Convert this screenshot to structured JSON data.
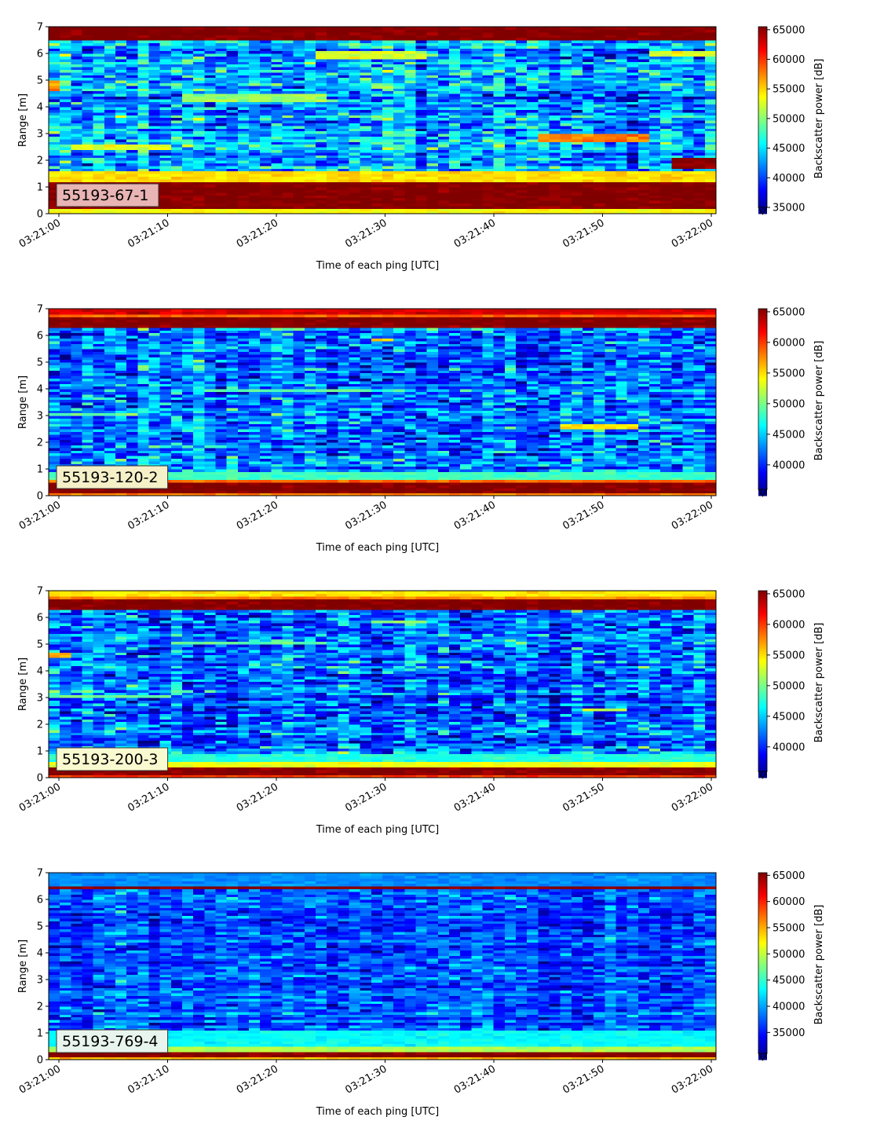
{
  "chart_data": [
    {
      "type": "heatmap",
      "label": "55193-67-1",
      "label_bg": "#e8b4b4",
      "xlabel": "Time of each ping [UTC]",
      "ylabel": "Range [m]",
      "colorbar_label": "Backscatter power [dB]",
      "colormap": "jet",
      "x_ticks": [
        "03:21:00",
        "03:21:10",
        "03:21:20",
        "03:21:30",
        "03:21:40",
        "03:21:50",
        "03:22:00"
      ],
      "y_ticks": [
        "0",
        "1",
        "2",
        "3",
        "4",
        "5",
        "6",
        "7"
      ],
      "ylim": [
        0,
        7
      ],
      "clim": [
        35000,
        65500
      ],
      "colorbar_ticks": [
        "65000",
        "60000",
        "55000",
        "50000",
        "45000",
        "40000",
        "35000"
      ],
      "colorbar_tick_values": [
        65000,
        60000,
        55000,
        50000,
        45000,
        40000,
        35000
      ],
      "background_level": 44000,
      "noise_level": 7000,
      "bands": [
        {
          "r0": 0.0,
          "r1": 0.22,
          "level": 54000
        },
        {
          "r0": 0.22,
          "r1": 1.2,
          "level": 65500
        },
        {
          "r0": 1.2,
          "r1": 1.55,
          "level": 55000
        },
        {
          "r0": 6.55,
          "r1": 7.0,
          "level": 65500
        },
        {
          "r0": 6.45,
          "r1": 6.55,
          "level": 57000
        }
      ],
      "features": [
        {
          "t0": 0,
          "t1": 0.02,
          "r0": 4.6,
          "r1": 5.0,
          "level": 57000
        },
        {
          "t0": 0.04,
          "t1": 0.18,
          "r0": 2.35,
          "r1": 2.6,
          "level": 53000
        },
        {
          "t0": 0.2,
          "t1": 0.42,
          "r0": 4.2,
          "r1": 4.5,
          "level": 51000
        },
        {
          "t0": 0.4,
          "t1": 0.56,
          "r0": 5.85,
          "r1": 6.1,
          "level": 53000
        },
        {
          "t0": 0.74,
          "t1": 0.9,
          "r0": 2.7,
          "r1": 3.05,
          "level": 58000
        },
        {
          "t0": 0.93,
          "t1": 1.0,
          "r0": 1.7,
          "r1": 2.1,
          "level": 65500
        },
        {
          "t0": 0.9,
          "t1": 1.0,
          "r0": 5.9,
          "r1": 6.1,
          "level": 53000
        }
      ]
    },
    {
      "type": "heatmap",
      "label": "55193-120-2",
      "label_bg": "#f5f0c8",
      "xlabel": "Time of each ping [UTC]",
      "ylabel": "Range [m]",
      "colorbar_label": "Backscatter power [dB]",
      "colormap": "jet",
      "x_ticks": [
        "03:21:00",
        "03:21:10",
        "03:21:20",
        "03:21:30",
        "03:21:40",
        "03:21:50",
        "03:22:00"
      ],
      "y_ticks": [
        "0",
        "1",
        "2",
        "3",
        "4",
        "5",
        "6",
        "7"
      ],
      "ylim": [
        0,
        7
      ],
      "clim": [
        36000,
        65500
      ],
      "colorbar_ticks": [
        "65000",
        "60000",
        "55000",
        "50000",
        "45000",
        "40000"
      ],
      "colorbar_tick_values": [
        65000,
        60000,
        55000,
        50000,
        45000,
        40000
      ],
      "background_level": 43000,
      "noise_level": 6500,
      "bands": [
        {
          "r0": 0.0,
          "r1": 0.1,
          "level": 58000
        },
        {
          "r0": 0.1,
          "r1": 0.45,
          "level": 65500
        },
        {
          "r0": 0.45,
          "r1": 0.65,
          "level": 59000
        },
        {
          "r0": 0.65,
          "r1": 0.9,
          "level": 49000
        },
        {
          "r0": 6.3,
          "r1": 6.65,
          "level": 65500
        },
        {
          "r0": 6.65,
          "r1": 6.85,
          "level": 59000
        },
        {
          "r0": 6.85,
          "r1": 7.0,
          "level": 63000
        }
      ],
      "features": [
        {
          "t0": 0.0,
          "t1": 0.14,
          "r0": 3.0,
          "r1": 3.15,
          "level": 50000
        },
        {
          "t0": 0.24,
          "t1": 0.48,
          "r0": 3.9,
          "r1": 4.05,
          "level": 50000
        },
        {
          "t0": 0.48,
          "t1": 0.52,
          "r0": 5.8,
          "r1": 5.95,
          "level": 56000
        },
        {
          "t0": 0.76,
          "t1": 0.88,
          "r0": 2.55,
          "r1": 2.7,
          "level": 55000
        }
      ]
    },
    {
      "type": "heatmap",
      "label": "55193-200-3",
      "label_bg": "#fafad0",
      "xlabel": "Time of each ping [UTC]",
      "ylabel": "Range [m]",
      "colorbar_label": "Backscatter power [dB]",
      "colormap": "jet",
      "x_ticks": [
        "03:21:00",
        "03:21:10",
        "03:21:20",
        "03:21:30",
        "03:21:40",
        "03:21:50",
        "03:22:00"
      ],
      "y_ticks": [
        "0",
        "1",
        "2",
        "3",
        "4",
        "5",
        "6",
        "7"
      ],
      "ylim": [
        0,
        7
      ],
      "clim": [
        36000,
        65500
      ],
      "colorbar_ticks": [
        "65000",
        "60000",
        "55000",
        "50000",
        "45000",
        "40000"
      ],
      "colorbar_tick_values": [
        65000,
        60000,
        55000,
        50000,
        45000,
        40000
      ],
      "background_level": 43000,
      "noise_level": 6500,
      "bands": [
        {
          "r0": 0.0,
          "r1": 0.12,
          "level": 60000
        },
        {
          "r0": 0.12,
          "r1": 0.4,
          "level": 65500
        },
        {
          "r0": 0.4,
          "r1": 0.65,
          "level": 54000
        },
        {
          "r0": 0.65,
          "r1": 0.95,
          "level": 48000
        },
        {
          "r0": 6.35,
          "r1": 6.65,
          "level": 65500
        },
        {
          "r0": 6.65,
          "r1": 6.8,
          "level": 58000
        },
        {
          "r0": 6.8,
          "r1": 7.0,
          "level": 55000
        }
      ],
      "features": [
        {
          "t0": 0.0,
          "t1": 0.03,
          "r0": 4.5,
          "r1": 4.65,
          "level": 57000
        },
        {
          "t0": 0.0,
          "t1": 0.18,
          "r0": 3.0,
          "r1": 3.15,
          "level": 50000
        },
        {
          "t0": 0.18,
          "t1": 0.42,
          "r0": 5.0,
          "r1": 5.1,
          "level": 50000
        },
        {
          "t0": 0.48,
          "t1": 0.56,
          "r0": 5.8,
          "r1": 5.95,
          "level": 52000
        },
        {
          "t0": 0.8,
          "t1": 0.86,
          "r0": 2.5,
          "r1": 2.65,
          "level": 53000
        }
      ]
    },
    {
      "type": "heatmap",
      "label": "55193-769-4",
      "label_bg": "#e8f5ee",
      "xlabel": "Time of each ping [UTC]",
      "ylabel": "Range [m]",
      "colorbar_label": "Backscatter power [dB]",
      "colormap": "jet",
      "x_ticks": [
        "03:21:00",
        "03:21:10",
        "03:21:20",
        "03:21:30",
        "03:21:40",
        "03:21:50",
        "03:22:00"
      ],
      "y_ticks": [
        "0",
        "1",
        "2",
        "3",
        "4",
        "5",
        "6",
        "7"
      ],
      "ylim": [
        0,
        7
      ],
      "clim": [
        31000,
        65500
      ],
      "colorbar_ticks": [
        "65000",
        "60000",
        "55000",
        "50000",
        "45000",
        "40000",
        "35000"
      ],
      "colorbar_tick_values": [
        65000,
        60000,
        55000,
        50000,
        45000,
        40000,
        35000
      ],
      "background_level": 38000,
      "noise_level": 5500,
      "bands": [
        {
          "r0": 0.0,
          "r1": 0.12,
          "level": 55000
        },
        {
          "r0": 0.12,
          "r1": 0.28,
          "level": 65500
        },
        {
          "r0": 0.28,
          "r1": 0.5,
          "level": 50000
        },
        {
          "r0": 0.5,
          "r1": 1.1,
          "level": 44000
        },
        {
          "r0": 6.4,
          "r1": 6.55,
          "level": 65500
        },
        {
          "r0": 6.55,
          "r1": 7.0,
          "level": 40000
        }
      ],
      "features": []
    }
  ]
}
